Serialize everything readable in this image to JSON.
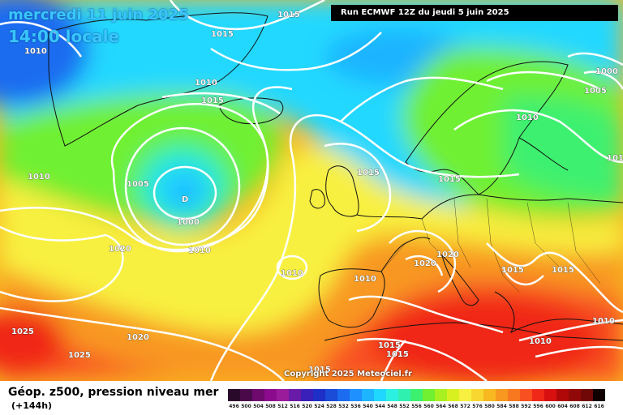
{
  "title": {
    "date": "mercredi 11 juin 2025",
    "time": "14:00 locale"
  },
  "run_info": "Run ECMWF 12Z du jeudi 5 juin 2025",
  "copyright": "Copyright 2025 Meteociel.fr",
  "legend": {
    "variable": "Géop. z500, pression niveau mer",
    "step": "(+144h)",
    "scale_values": [
      "496",
      "500",
      "504",
      "508",
      "512",
      "516",
      "520",
      "524",
      "528",
      "532",
      "536",
      "540",
      "544",
      "548",
      "552",
      "556",
      "560",
      "564",
      "568",
      "572",
      "576",
      "580",
      "584",
      "588",
      "592",
      "596",
      "600",
      "604",
      "608",
      "612",
      "616"
    ],
    "scale_colors": [
      "#2a0a2a",
      "#4a0a4a",
      "#6e0a6e",
      "#8c0a8c",
      "#9b1c9b",
      "#6a1aa8",
      "#3a1fb8",
      "#1e2fc8",
      "#1a4cd8",
      "#1c6cf0",
      "#1e90ff",
      "#1eb4ff",
      "#20d8ff",
      "#2cf0e0",
      "#30f0b0",
      "#3cf070",
      "#70f030",
      "#a8f020",
      "#d8f020",
      "#f8f040",
      "#f8d830",
      "#f8b820",
      "#f89820",
      "#f87820",
      "#f85020",
      "#f02818",
      "#d81010",
      "#b00808",
      "#900808",
      "#700808",
      "#100000"
    ]
  },
  "isobar_labels": [
    "1015",
    "1010",
    "1015",
    "1010",
    "1015",
    "1005",
    "1000",
    "1010",
    "1020",
    "1010",
    "1025",
    "1025",
    "1020",
    "1015",
    "1015",
    "1015",
    "1020",
    "1020",
    "1010",
    "1015",
    "1015",
    "1010",
    "1000",
    "1005",
    "1010",
    "1010",
    "1015",
    "1015",
    "1010",
    "1010"
  ],
  "low_marker": "D"
}
